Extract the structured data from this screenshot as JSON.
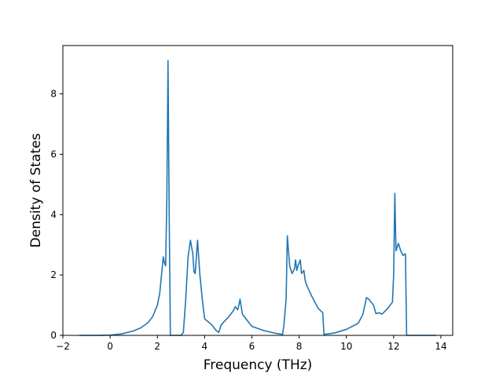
{
  "chart_data": {
    "type": "line",
    "title": "",
    "xlabel": "Frequency (THz)",
    "ylabel": "Density of States",
    "xlim": [
      -2,
      14.5
    ],
    "ylim": [
      0,
      9.6
    ],
    "xticks": [
      -2,
      0,
      2,
      4,
      6,
      8,
      10,
      12,
      14
    ],
    "yticks": [
      0,
      2,
      4,
      6,
      8
    ],
    "grid": false,
    "legend": "none",
    "series": [
      {
        "color": "#1f77b4",
        "x": [
          -1.3,
          -0.5,
          0.0,
          0.5,
          1.0,
          1.3,
          1.6,
          1.8,
          2.0,
          2.1,
          2.2,
          2.25,
          2.3,
          2.35,
          2.4,
          2.45,
          2.5,
          2.55,
          2.6,
          2.65,
          2.7,
          3.0,
          3.1,
          3.2,
          3.3,
          3.4,
          3.5,
          3.55,
          3.6,
          3.7,
          3.8,
          3.9,
          4.0,
          4.3,
          4.5,
          4.6,
          4.7,
          5.0,
          5.2,
          5.3,
          5.35,
          5.4,
          5.45,
          5.5,
          5.6,
          6.0,
          6.5,
          7.0,
          7.3,
          7.35,
          7.45,
          7.5,
          7.55,
          7.6,
          7.7,
          7.8,
          7.85,
          7.9,
          7.95,
          8.05,
          8.1,
          8.2,
          8.25,
          8.3,
          8.5,
          8.8,
          9.0,
          9.05,
          9.5,
          10.0,
          10.5,
          10.7,
          10.85,
          10.95,
          11.15,
          11.25,
          11.4,
          11.5,
          11.7,
          11.95,
          12.0,
          12.05,
          12.1,
          12.2,
          12.3,
          12.4,
          12.5,
          12.55,
          13.0,
          13.8
        ],
        "y": [
          0.0,
          0.0,
          0.01,
          0.05,
          0.15,
          0.25,
          0.42,
          0.62,
          1.0,
          1.4,
          2.2,
          2.6,
          2.4,
          2.3,
          4.5,
          9.1,
          4.0,
          0.0,
          0.0,
          0.0,
          0.0,
          0.0,
          0.1,
          1.2,
          2.6,
          3.15,
          2.7,
          2.1,
          2.05,
          3.15,
          2.0,
          1.2,
          0.55,
          0.35,
          0.15,
          0.1,
          0.35,
          0.6,
          0.8,
          0.95,
          0.9,
          0.85,
          1.0,
          1.2,
          0.7,
          0.3,
          0.16,
          0.07,
          0.03,
          0.3,
          1.2,
          3.3,
          2.8,
          2.3,
          2.05,
          2.2,
          2.5,
          2.15,
          2.3,
          2.5,
          2.05,
          2.15,
          1.85,
          1.7,
          1.35,
          0.9,
          0.75,
          0.03,
          0.08,
          0.2,
          0.4,
          0.7,
          1.25,
          1.2,
          1.0,
          0.72,
          0.75,
          0.7,
          0.85,
          1.1,
          2.0,
          4.7,
          2.8,
          3.05,
          2.8,
          2.65,
          2.7,
          0.0,
          0.0,
          0.0
        ]
      }
    ]
  }
}
